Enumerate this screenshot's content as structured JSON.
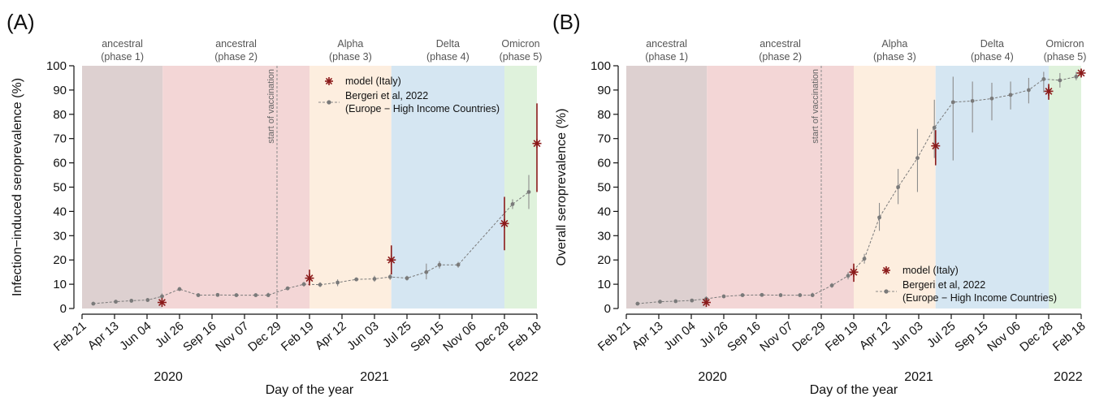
{
  "chart_data": [
    {
      "type": "line",
      "panel_letter": "(A)",
      "ylabel": "Infection−induced seroprevalence (%)",
      "xlabel": "Day of the year",
      "ylim": [
        0,
        100
      ],
      "yticks": [
        0,
        10,
        20,
        30,
        40,
        50,
        60,
        70,
        80,
        90,
        100
      ],
      "xlim": [
        "2020-02-21",
        "2022-02-18"
      ],
      "xticks": [
        {
          "date": "2020-02-21",
          "label": "Feb 21"
        },
        {
          "date": "2020-04-13",
          "label": "Apr 13"
        },
        {
          "date": "2020-06-04",
          "label": "Jun 04"
        },
        {
          "date": "2020-07-26",
          "label": "Jul 26"
        },
        {
          "date": "2020-09-16",
          "label": "Sep 16"
        },
        {
          "date": "2020-11-07",
          "label": "Nov 07"
        },
        {
          "date": "2020-12-29",
          "label": "Dec 29"
        },
        {
          "date": "2021-02-19",
          "label": "Feb 19"
        },
        {
          "date": "2021-04-12",
          "label": "Apr 12"
        },
        {
          "date": "2021-06-03",
          "label": "Jun 03"
        },
        {
          "date": "2021-07-25",
          "label": "Jul 25"
        },
        {
          "date": "2021-09-15",
          "label": "Sep 15"
        },
        {
          "date": "2021-11-06",
          "label": "Nov 06"
        },
        {
          "date": "2021-12-28",
          "label": "Dec 28"
        },
        {
          "date": "2022-02-18",
          "label": "Feb 18"
        }
      ],
      "year_labels": [
        {
          "date": "2020-07-08",
          "label": "2020"
        },
        {
          "date": "2021-06-03",
          "label": "2021"
        },
        {
          "date": "2022-01-28",
          "label": "2022"
        }
      ],
      "phases": [
        {
          "start": "2020-02-21",
          "end": "2020-06-29",
          "name": "ancestral",
          "sub": "(phase 1)",
          "color": "#ddd0d0"
        },
        {
          "start": "2020-06-29",
          "end": "2021-02-19",
          "name": "ancestral",
          "sub": "(phase 2)",
          "color": "#f3d6d6"
        },
        {
          "start": "2021-02-19",
          "end": "2021-06-30",
          "name": "Alpha",
          "sub": "(phase 3)",
          "color": "#fdeedf"
        },
        {
          "start": "2021-06-30",
          "end": "2021-12-28",
          "name": "Delta",
          "sub": "(phase 4)",
          "color": "#d5e6f2"
        },
        {
          "start": "2021-12-28",
          "end": "2022-02-18",
          "name": "Omicron",
          "sub": "(phase 5)",
          "color": "#dff2dc"
        }
      ],
      "vaccination": {
        "date": "2020-12-29",
        "label": "start of vaccination"
      },
      "legend": {
        "position": "top",
        "model_label": "model (Italy)",
        "obs_label_1": "Bergeri et al, 2022",
        "obs_label_2": "(Europe − High Income Countries)"
      },
      "series": [
        {
          "name": "Bergeri et al, 2022",
          "color": "#7a7a7a",
          "points": [
            {
              "x": "2020-03-10",
              "y": 2.0,
              "lo": 1.5,
              "hi": 2.5
            },
            {
              "x": "2020-04-15",
              "y": 2.8,
              "lo": 2.0,
              "hi": 3.6
            },
            {
              "x": "2020-05-10",
              "y": 3.2,
              "lo": 2.4,
              "hi": 4.0
            },
            {
              "x": "2020-06-05",
              "y": 3.5,
              "lo": 2.7,
              "hi": 4.3
            },
            {
              "x": "2020-06-28",
              "y": 5.0,
              "lo": 3.8,
              "hi": 6.2
            },
            {
              "x": "2020-07-26",
              "y": 8.0,
              "lo": 7.2,
              "hi": 8.8
            },
            {
              "x": "2020-08-25",
              "y": 5.5,
              "lo": 5.0,
              "hi": 6.0
            },
            {
              "x": "2020-09-25",
              "y": 5.6,
              "lo": 5.1,
              "hi": 6.1
            },
            {
              "x": "2020-10-25",
              "y": 5.5,
              "lo": 5.0,
              "hi": 6.0
            },
            {
              "x": "2020-11-25",
              "y": 5.5,
              "lo": 5.0,
              "hi": 6.0
            },
            {
              "x": "2020-12-15",
              "y": 5.5,
              "lo": 4.8,
              "hi": 6.5
            },
            {
              "x": "2021-01-15",
              "y": 8.3,
              "lo": 7.6,
              "hi": 9.0
            },
            {
              "x": "2021-02-10",
              "y": 10.0,
              "lo": 9.0,
              "hi": 11.0
            },
            {
              "x": "2021-03-08",
              "y": 9.8,
              "lo": 8.8,
              "hi": 10.8
            },
            {
              "x": "2021-04-05",
              "y": 10.7,
              "lo": 9.2,
              "hi": 12.0
            },
            {
              "x": "2021-05-05",
              "y": 12.0,
              "lo": 11.2,
              "hi": 12.8
            },
            {
              "x": "2021-06-03",
              "y": 12.2,
              "lo": 11.0,
              "hi": 13.5
            },
            {
              "x": "2021-06-28",
              "y": 13.0,
              "lo": 11.8,
              "hi": 14.2
            },
            {
              "x": "2021-07-25",
              "y": 12.5,
              "lo": 11.5,
              "hi": 13.5
            },
            {
              "x": "2021-08-25",
              "y": 15.0,
              "lo": 12.0,
              "hi": 18.5
            },
            {
              "x": "2021-09-15",
              "y": 18.0,
              "lo": 16.5,
              "hi": 19.5
            },
            {
              "x": "2021-10-15",
              "y": 18.0,
              "lo": 16.8,
              "hi": 19.2
            },
            {
              "x": "2022-01-10",
              "y": 43.0,
              "lo": 41.0,
              "hi": 45.0
            },
            {
              "x": "2022-02-05",
              "y": 48.0,
              "lo": 41.0,
              "hi": 55.0
            }
          ]
        },
        {
          "name": "model (Italy)",
          "color": "#8b1a1a",
          "points": [
            {
              "x": "2020-06-28",
              "y": 2.5,
              "lo": 2.5,
              "hi": 2.5
            },
            {
              "x": "2021-02-19",
              "y": 12.5,
              "lo": 9.5,
              "hi": 16.0
            },
            {
              "x": "2021-06-30",
              "y": 20.0,
              "lo": 14.0,
              "hi": 26.0
            },
            {
              "x": "2021-12-28",
              "y": 35.0,
              "lo": 24.0,
              "hi": 46.0
            },
            {
              "x": "2022-02-18",
              "y": 68.0,
              "lo": 48.0,
              "hi": 84.5
            }
          ]
        }
      ]
    },
    {
      "type": "line",
      "panel_letter": "(B)",
      "ylabel": "Overall seroprevalence (%)",
      "xlabel": "Day of the year",
      "ylim": [
        0,
        100
      ],
      "yticks": [
        0,
        10,
        20,
        30,
        40,
        50,
        60,
        70,
        80,
        90,
        100
      ],
      "xlim": [
        "2020-02-21",
        "2022-02-18"
      ],
      "xticks": [
        {
          "date": "2020-02-21",
          "label": "Feb 21"
        },
        {
          "date": "2020-04-13",
          "label": "Apr 13"
        },
        {
          "date": "2020-06-04",
          "label": "Jun 04"
        },
        {
          "date": "2020-07-26",
          "label": "Jul 26"
        },
        {
          "date": "2020-09-16",
          "label": "Sep 16"
        },
        {
          "date": "2020-11-07",
          "label": "Nov 07"
        },
        {
          "date": "2020-12-29",
          "label": "Dec 29"
        },
        {
          "date": "2021-02-19",
          "label": "Feb 19"
        },
        {
          "date": "2021-04-12",
          "label": "Apr 12"
        },
        {
          "date": "2021-06-03",
          "label": "Jun 03"
        },
        {
          "date": "2021-07-25",
          "label": "Jul 25"
        },
        {
          "date": "2021-09-15",
          "label": "Sep 15"
        },
        {
          "date": "2021-11-06",
          "label": "Nov 06"
        },
        {
          "date": "2021-12-28",
          "label": "Dec 28"
        },
        {
          "date": "2022-02-18",
          "label": "Feb 18"
        }
      ],
      "year_labels": [
        {
          "date": "2020-07-08",
          "label": "2020"
        },
        {
          "date": "2021-06-03",
          "label": "2021"
        },
        {
          "date": "2022-01-28",
          "label": "2022"
        }
      ],
      "phases": [
        {
          "start": "2020-02-21",
          "end": "2020-06-29",
          "name": "ancestral",
          "sub": "(phase 1)",
          "color": "#ddd0d0"
        },
        {
          "start": "2020-06-29",
          "end": "2021-02-19",
          "name": "ancestral",
          "sub": "(phase 2)",
          "color": "#f3d6d6"
        },
        {
          "start": "2021-02-19",
          "end": "2021-06-30",
          "name": "Alpha",
          "sub": "(phase 3)",
          "color": "#fdeedf"
        },
        {
          "start": "2021-06-30",
          "end": "2021-12-28",
          "name": "Delta",
          "sub": "(phase 4)",
          "color": "#d5e6f2"
        },
        {
          "start": "2021-12-28",
          "end": "2022-02-18",
          "name": "Omicron",
          "sub": "(phase 5)",
          "color": "#dff2dc"
        }
      ],
      "vaccination": {
        "date": "2020-12-29",
        "label": "start of vaccination"
      },
      "legend": {
        "position": "bottom-right",
        "model_label": "model (Italy)",
        "obs_label_1": "Bergeri et al, 2022",
        "obs_label_2": "(Europe − High Income Countries)"
      },
      "series": [
        {
          "name": "Bergeri et al, 2022",
          "color": "#7a7a7a",
          "points": [
            {
              "x": "2020-03-10",
              "y": 2.0,
              "lo": 1.5,
              "hi": 2.5
            },
            {
              "x": "2020-04-15",
              "y": 2.8,
              "lo": 2.0,
              "hi": 3.6
            },
            {
              "x": "2020-05-10",
              "y": 3.0,
              "lo": 2.3,
              "hi": 3.7
            },
            {
              "x": "2020-06-05",
              "y": 3.3,
              "lo": 2.6,
              "hi": 4.0
            },
            {
              "x": "2020-06-28",
              "y": 4.0,
              "lo": 3.0,
              "hi": 5.0
            },
            {
              "x": "2020-07-26",
              "y": 5.0,
              "lo": 4.4,
              "hi": 5.6
            },
            {
              "x": "2020-08-25",
              "y": 5.5,
              "lo": 5.0,
              "hi": 6.0
            },
            {
              "x": "2020-09-25",
              "y": 5.6,
              "lo": 5.1,
              "hi": 6.1
            },
            {
              "x": "2020-10-25",
              "y": 5.5,
              "lo": 5.0,
              "hi": 6.0
            },
            {
              "x": "2020-11-25",
              "y": 5.5,
              "lo": 5.0,
              "hi": 6.0
            },
            {
              "x": "2020-12-15",
              "y": 5.5,
              "lo": 4.8,
              "hi": 6.5
            },
            {
              "x": "2021-01-15",
              "y": 9.5,
              "lo": 8.5,
              "hi": 10.5
            },
            {
              "x": "2021-02-10",
              "y": 13.5,
              "lo": 12.0,
              "hi": 15.0
            },
            {
              "x": "2021-03-08",
              "y": 20.5,
              "lo": 18.5,
              "hi": 22.5
            },
            {
              "x": "2021-04-01",
              "y": 37.5,
              "lo": 32.0,
              "hi": 43.5
            },
            {
              "x": "2021-05-01",
              "y": 50.0,
              "lo": 43.0,
              "hi": 57.5
            },
            {
              "x": "2021-06-01",
              "y": 62.0,
              "lo": 48.0,
              "hi": 74.0
            },
            {
              "x": "2021-06-28",
              "y": 74.5,
              "lo": 62.0,
              "hi": 86.0
            },
            {
              "x": "2021-07-28",
              "y": 85.0,
              "lo": 61.0,
              "hi": 95.5
            },
            {
              "x": "2021-08-28",
              "y": 85.5,
              "lo": 72.5,
              "hi": 93.5
            },
            {
              "x": "2021-09-28",
              "y": 86.5,
              "lo": 77.5,
              "hi": 93.0
            },
            {
              "x": "2021-10-28",
              "y": 88.0,
              "lo": 82.0,
              "hi": 93.5
            },
            {
              "x": "2021-11-26",
              "y": 90.0,
              "lo": 84.5,
              "hi": 95.0
            },
            {
              "x": "2021-12-20",
              "y": 94.5,
              "lo": 89.0,
              "hi": 97.5
            },
            {
              "x": "2022-01-15",
              "y": 94.0,
              "lo": 91.0,
              "hi": 97.0
            },
            {
              "x": "2022-02-10",
              "y": 95.5,
              "lo": 94.0,
              "hi": 97.5
            }
          ]
        },
        {
          "name": "model (Italy)",
          "color": "#8b1a1a",
          "points": [
            {
              "x": "2020-06-28",
              "y": 2.5,
              "lo": 2.5,
              "hi": 2.5
            },
            {
              "x": "2021-02-19",
              "y": 15.0,
              "lo": 11.0,
              "hi": 18.5
            },
            {
              "x": "2021-06-30",
              "y": 67.0,
              "lo": 59.0,
              "hi": 73.5
            },
            {
              "x": "2021-12-28",
              "y": 89.5,
              "lo": 86.0,
              "hi": 92.5
            },
            {
              "x": "2022-02-18",
              "y": 97.0,
              "lo": 95.5,
              "hi": 98.5
            }
          ]
        }
      ]
    }
  ]
}
